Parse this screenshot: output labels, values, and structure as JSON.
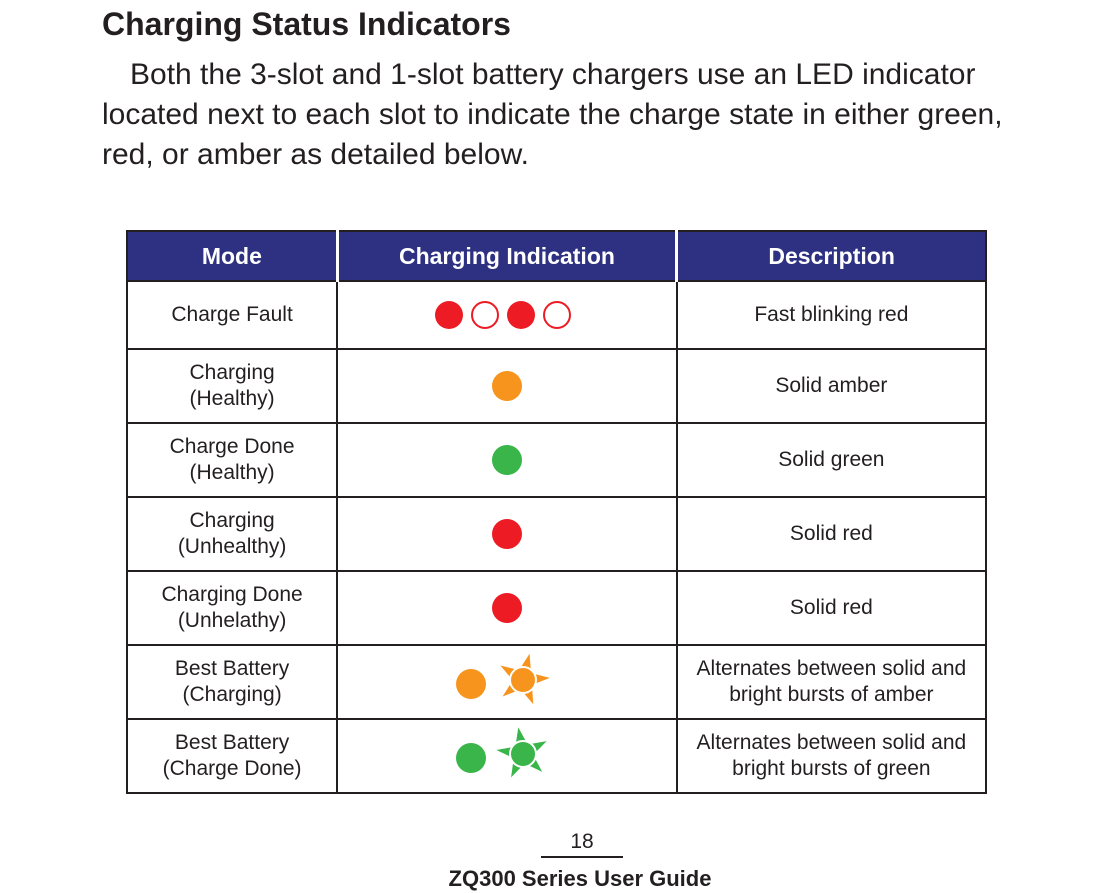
{
  "heading": "Charging Status Indicators",
  "intro": "Both the 3-slot and 1-slot battery chargers use an LED indicator located next to each slot to indicate the charge state in either green, red, or amber as detailed below.",
  "table": {
    "headers": {
      "mode": "Mode",
      "indication": "Charging Indication",
      "description": "Description"
    },
    "rows": [
      {
        "mode_line1": "Charge Fault",
        "mode_line2": "",
        "indicator": "blinking-red-icon",
        "description_line1": "Fast blinking red",
        "description_line2": ""
      },
      {
        "mode_line1": "Charging",
        "mode_line2": "(Healthy)",
        "indicator": "solid-amber-icon",
        "description_line1": "Solid amber",
        "description_line2": ""
      },
      {
        "mode_line1": "Charge Done",
        "mode_line2": "(Healthy)",
        "indicator": "solid-green-icon",
        "description_line1": "Solid green",
        "description_line2": ""
      },
      {
        "mode_line1": "Charging",
        "mode_line2": "(Unhealthy)",
        "indicator": "solid-red-icon",
        "description_line1": "Solid red",
        "description_line2": ""
      },
      {
        "mode_line1": "Charging Done",
        "mode_line2": "(Unhelathy)",
        "indicator": "solid-red-icon",
        "description_line1": "Solid red",
        "description_line2": ""
      },
      {
        "mode_line1": "Best Battery",
        "mode_line2": "(Charging)",
        "indicator": "amber-burst-icon",
        "description_line1": "Alternates between solid and",
        "description_line2": "bright bursts of amber"
      },
      {
        "mode_line1": "Best Battery",
        "mode_line2": "(Charge Done)",
        "indicator": "green-burst-icon",
        "description_line1": "Alternates between solid and",
        "description_line2": "bright bursts of green"
      }
    ]
  },
  "colors": {
    "header_bg": "#2e3182",
    "red": "#ed1c24",
    "amber": "#f7941d",
    "green": "#39b54a"
  },
  "page_number": "18",
  "footer": "ZQ300 Series User Guide"
}
